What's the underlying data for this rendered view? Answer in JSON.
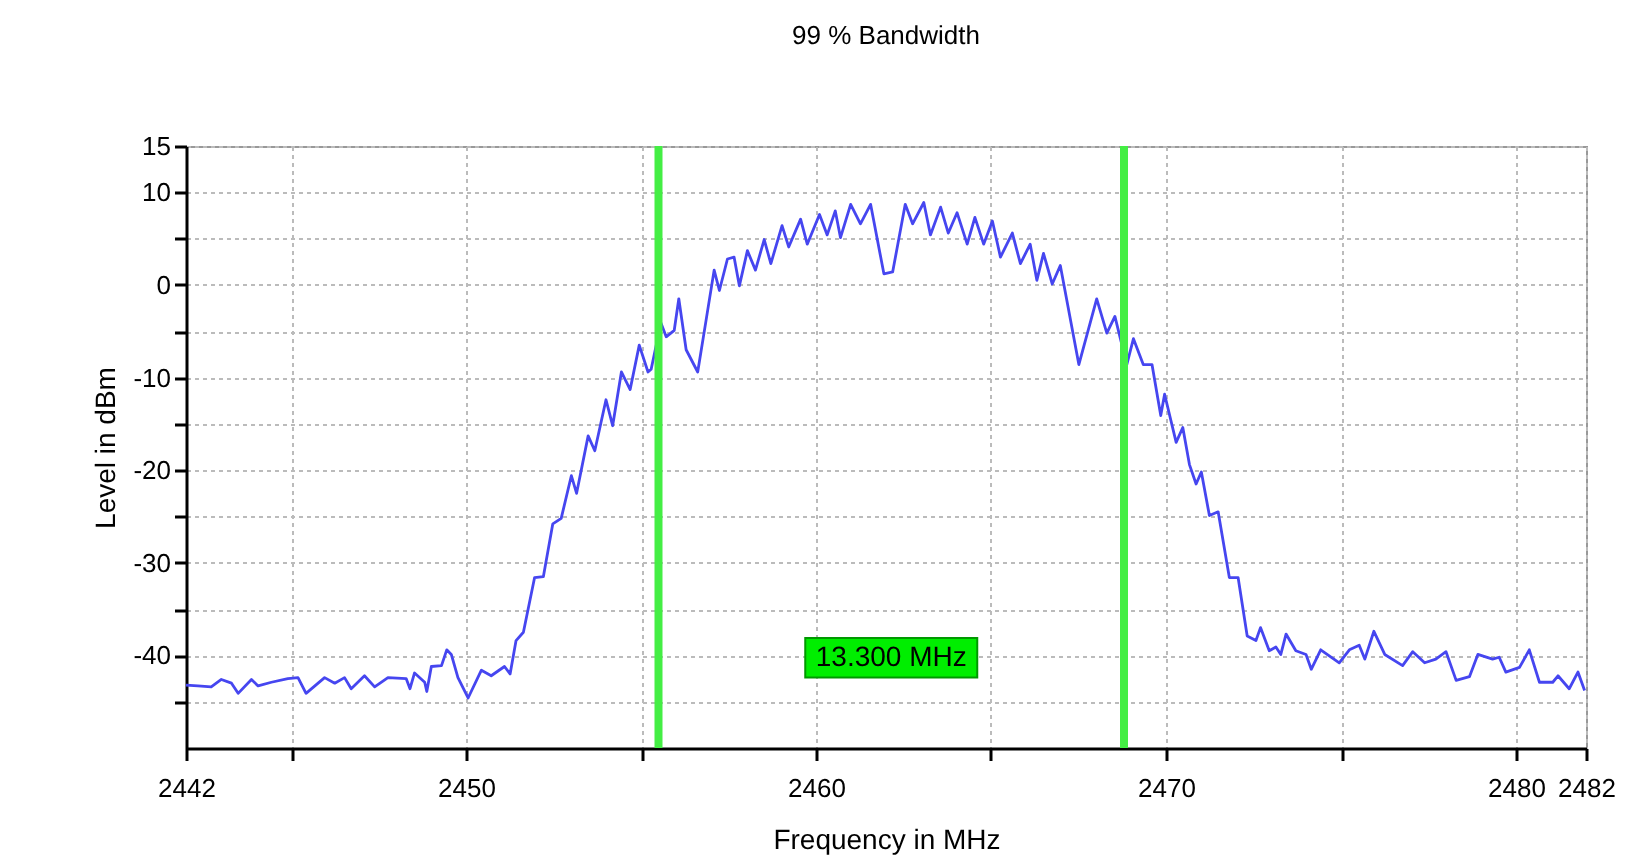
{
  "chart_data": {
    "type": "line",
    "title": "99 % Bandwidth",
    "xlabel": "Frequency in MHz",
    "ylabel": "Level in dBm",
    "xlim": [
      2442,
      2482
    ],
    "xticks": [
      2442,
      {
        "value": 2445,
        "label": null
      },
      2450,
      {
        "value": 2455,
        "label": null
      },
      2460,
      {
        "value": 2465,
        "label": null
      },
      2470,
      {
        "value": 2475,
        "label": null
      },
      2480,
      2482
    ],
    "ylim": [
      -50,
      15
    ],
    "yticks": [
      {
        "value": -45,
        "label": null
      },
      -40,
      {
        "value": -35,
        "label": null
      },
      -30,
      {
        "value": -25,
        "label": null
      },
      -20,
      {
        "value": -15,
        "label": null
      },
      -10,
      {
        "value": -5,
        "label": null
      },
      0,
      {
        "value": 5,
        "label": null
      },
      10,
      15
    ],
    "grid": true,
    "line_style": "solid",
    "x": [
      2442,
      2442.34,
      2442.72,
      2443.01,
      2443.3,
      2443.49,
      2443.87,
      2444.06,
      2444.44,
      2444.91,
      2445.2,
      2445.43,
      2445.96,
      2446.25,
      2446.53,
      2446.72,
      2447.1,
      2447.39,
      2447.77,
      2448.29,
      2448.4,
      2448.53,
      2448.82,
      2448.88,
      2449.01,
      2449.3,
      2449.45,
      2449.58,
      2449.77,
      2450.06,
      2450.44,
      2450.72,
      2451.1,
      2451.26,
      2451.43,
      2451.64,
      2451.96,
      2452.21,
      2452.48,
      2452.72,
      2453.01,
      2453.16,
      2453.49,
      2453.68,
      2454.0,
      2454.19,
      2454.44,
      2454.69,
      2454.95,
      2455.2,
      2455.29,
      2455.57,
      2455.72,
      2455.95,
      2456.08,
      2456.29,
      2456.62,
      2456.86,
      2457.09,
      2457.24,
      2457.47,
      2457.66,
      2457.81,
      2458.04,
      2458.27,
      2458.52,
      2458.71,
      2459.03,
      2459.22,
      2459.56,
      2459.75,
      2460.1,
      2460.32,
      2460.55,
      2460.7,
      2460.99,
      2461.27,
      2461.56,
      2461.94,
      2462.19,
      2462.55,
      2462.76,
      2463.08,
      2463.27,
      2463.56,
      2463.78,
      2464.03,
      2464.32,
      2464.54,
      2464.79,
      2465.04,
      2465.27,
      2465.61,
      2465.84,
      2466.12,
      2466.31,
      2466.5,
      2466.75,
      2466.98,
      2467.51,
      2468.02,
      2468.31,
      2468.54,
      2468.88,
      2469.07,
      2469.35,
      2469.6,
      2469.85,
      2469.96,
      2470.29,
      2470.48,
      2470.67,
      2470.86,
      2471.01,
      2471.24,
      2471.49,
      2471.81,
      2472.06,
      2472.32,
      2472.57,
      2472.7,
      2472.95,
      2473.14,
      2473.28,
      2473.43,
      2473.71,
      2474.0,
      2474.15,
      2474.42,
      2474.95,
      2475.24,
      2475.52,
      2475.68,
      2475.94,
      2476.25,
      2476.76,
      2477.05,
      2477.39,
      2477.71,
      2478.0,
      2478.29,
      2478.67,
      2478.91,
      2479.33,
      2479.52,
      2479.71,
      2480.1,
      2480.38,
      2480.67,
      2481.05,
      2481.2,
      2481.52,
      2481.77,
      2481.96
    ],
    "series": [
      {
        "color": "#4646f0",
        "values": [
          -43.2,
          -43.3,
          -43.4,
          -42.6,
          -43,
          -44.1,
          -42.6,
          -43.3,
          -42.9,
          -42.5,
          -42.4,
          -44.1,
          -42.4,
          -43,
          -42.4,
          -43.6,
          -42.2,
          -43.4,
          -42.4,
          -42.5,
          -43.6,
          -41.9,
          -42.9,
          -43.9,
          -41.2,
          -41.1,
          -39.4,
          -39.9,
          -42.4,
          -44.6,
          -41.6,
          -42.2,
          -41.2,
          -42,
          -38.4,
          -37.5,
          -31.6,
          -31.5,
          -25.8,
          -25.2,
          -20.6,
          -22.5,
          -16.3,
          -17.9,
          -12.4,
          -15.2,
          -9.4,
          -11.3,
          -6.5,
          -9.4,
          -9.1,
          -4.1,
          -5.6,
          -4.9,
          -1.5,
          -7,
          -9.4,
          -3.8,
          1.6,
          -0.6,
          2.8,
          3,
          -0.1,
          3.7,
          1.6,
          4.9,
          2.3,
          6.4,
          4.1,
          7.1,
          4.4,
          7.6,
          5.4,
          8,
          5.1,
          8.7,
          6.6,
          8.7,
          1.2,
          1.4,
          8.7,
          6.6,
          8.9,
          5.4,
          8.4,
          5.6,
          7.8,
          4.4,
          7.3,
          4.4,
          6.9,
          3,
          5.6,
          2.3,
          4.4,
          0.5,
          3.4,
          0.1,
          2.1,
          -8.6,
          -1.5,
          -5.2,
          -3.4,
          -8.6,
          -5.8,
          -8.6,
          -8.6,
          -14.1,
          -11.8,
          -17,
          -15.4,
          -19.4,
          -21.5,
          -20.2,
          -24.9,
          -24.5,
          -31.6,
          -31.6,
          -37.9,
          -38.4,
          -37,
          -39.5,
          -39.1,
          -39.9,
          -37.7,
          -39.5,
          -39.9,
          -41.5,
          -39.4,
          -40.8,
          -39.4,
          -38.9,
          -40.4,
          -37.4,
          -39.9,
          -41.1,
          -39.6,
          -40.8,
          -40.4,
          -39.6,
          -42.7,
          -42.3,
          -39.9,
          -40.4,
          -40.2,
          -41.8,
          -41.3,
          -39.4,
          -42.9,
          -42.9,
          -42.2,
          -43.6,
          -41.8,
          -43.8
        ]
      }
    ],
    "ref_lines": [
      {
        "axis": "x",
        "value": 2455.5,
        "color": "#44ee44"
      },
      {
        "axis": "x",
        "value": 2468.8,
        "color": "#44ee44"
      }
    ],
    "annotations": [
      "13.300 MHz"
    ]
  }
}
